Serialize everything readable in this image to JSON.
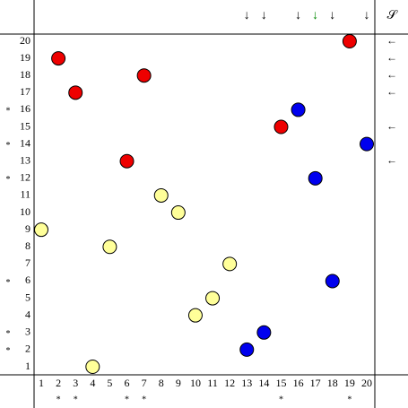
{
  "columns": [
    1,
    2,
    3,
    4,
    5,
    6,
    7,
    8,
    9,
    10,
    11,
    12,
    13,
    14,
    15,
    16,
    17,
    18,
    19,
    20
  ],
  "rows": [
    1,
    2,
    3,
    4,
    5,
    6,
    7,
    8,
    9,
    10,
    11,
    12,
    13,
    14,
    15,
    16,
    17,
    18,
    19,
    20
  ],
  "points": [
    {
      "x": 1,
      "y": 9,
      "color": "#ffff99"
    },
    {
      "x": 2,
      "y": 19,
      "color": "#ee0000"
    },
    {
      "x": 3,
      "y": 17,
      "color": "#ee0000"
    },
    {
      "x": 4,
      "y": 1,
      "color": "#ffff99"
    },
    {
      "x": 5,
      "y": 8,
      "color": "#ffff99"
    },
    {
      "x": 6,
      "y": 13,
      "color": "#ee0000"
    },
    {
      "x": 7,
      "y": 18,
      "color": "#ee0000"
    },
    {
      "x": 8,
      "y": 11,
      "color": "#ffff99"
    },
    {
      "x": 9,
      "y": 10,
      "color": "#ffff99"
    },
    {
      "x": 10,
      "y": 4,
      "color": "#ffff99"
    },
    {
      "x": 11,
      "y": 5,
      "color": "#ffff99"
    },
    {
      "x": 12,
      "y": 7,
      "color": "#ffff99"
    },
    {
      "x": 13,
      "y": 2,
      "color": "#0000ee"
    },
    {
      "x": 14,
      "y": 3,
      "color": "#0000ee"
    },
    {
      "x": 15,
      "y": 15,
      "color": "#ee0000"
    },
    {
      "x": 16,
      "y": 16,
      "color": "#0000ee"
    },
    {
      "x": 17,
      "y": 12,
      "color": "#0000ee"
    },
    {
      "x": 18,
      "y": 6,
      "color": "#0000ee"
    },
    {
      "x": 19,
      "y": 20,
      "color": "#ee0000"
    },
    {
      "x": 20,
      "y": 14,
      "color": "#0000ee"
    }
  ],
  "top_arrows": [
    {
      "col": 13,
      "label": "↓",
      "color": "#000000"
    },
    {
      "col": 14,
      "label": "↓",
      "color": "#000000"
    },
    {
      "col": 16,
      "label": "↓",
      "color": "#000000"
    },
    {
      "col": 17,
      "label": "↓",
      "color": "#008800"
    },
    {
      "col": 18,
      "label": "↓",
      "color": "#000000"
    },
    {
      "col": 20,
      "label": "↓",
      "color": "#000000"
    }
  ],
  "right_arrows": [
    {
      "row": 20,
      "label": "←"
    },
    {
      "row": 19,
      "label": "←"
    },
    {
      "row": 18,
      "label": "←"
    },
    {
      "row": 17,
      "label": "←"
    },
    {
      "row": 15,
      "label": "←"
    },
    {
      "row": 13,
      "label": "←"
    }
  ],
  "right_header": "𝒮",
  "left_marks": [
    {
      "row": 16,
      "label": "*"
    },
    {
      "row": 14,
      "label": "*"
    },
    {
      "row": 12,
      "label": "*"
    },
    {
      "row": 6,
      "label": "*"
    },
    {
      "row": 3,
      "label": "*"
    },
    {
      "row": 2,
      "label": "*"
    }
  ],
  "bottom_marks": [
    {
      "col": 2,
      "label": "*"
    },
    {
      "col": 3,
      "label": "*"
    },
    {
      "col": 6,
      "label": "*"
    },
    {
      "col": 7,
      "label": "*"
    },
    {
      "col": 15,
      "label": "*"
    },
    {
      "col": 19,
      "label": "*"
    }
  ]
}
